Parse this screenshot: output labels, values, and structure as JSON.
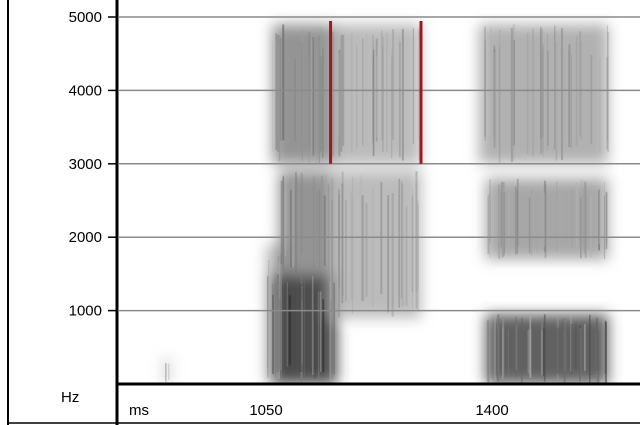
{
  "chart_data": {
    "type": "heatmap",
    "title": "",
    "x_unit_label": "ms",
    "y_unit_label": "Hz",
    "y_ticks": [
      1000,
      2000,
      3000,
      4000,
      5000
    ],
    "y_tick_labels": [
      "1000",
      "2000",
      "3000",
      "4000",
      "5000"
    ],
    "x_ticks": [
      1050,
      1400
    ],
    "x_tick_labels": [
      "1050",
      "1400"
    ],
    "ylim": [
      0,
      5000
    ],
    "xlim": [
      830,
      1630
    ],
    "grid": "horizontal",
    "energy_blobs": [
      {
        "x": [
          1050,
          1085
        ],
        "y": [
          0,
          1900
        ],
        "intensity": 0.35
      },
      {
        "x": [
          1060,
          1160
        ],
        "y": [
          0,
          1500
        ],
        "intensity": 0.9
      },
      {
        "x": [
          1070,
          1150
        ],
        "y": [
          1500,
          2900
        ],
        "intensity": 0.55
      },
      {
        "x": [
          1060,
          1160
        ],
        "y": [
          3000,
          4900
        ],
        "intensity": 0.55
      },
      {
        "x": [
          1150,
          1290
        ],
        "y": [
          900,
          2900
        ],
        "intensity": 0.35
      },
      {
        "x": [
          1150,
          1290
        ],
        "y": [
          3000,
          4900
        ],
        "intensity": 0.35
      },
      {
        "x": [
          1390,
          1580
        ],
        "y": [
          0,
          950
        ],
        "intensity": 0.8
      },
      {
        "x": [
          1390,
          1580
        ],
        "y": [
          1700,
          2800
        ],
        "intensity": 0.45
      },
      {
        "x": [
          1380,
          1580
        ],
        "y": [
          3000,
          4900
        ],
        "intensity": 0.4
      },
      {
        "x": [
          892,
          900
        ],
        "y": [
          0,
          350
        ],
        "intensity": 0.35
      }
    ],
    "markers": [
      {
        "x": 1150,
        "y": [
          3000,
          5000
        ],
        "color": "#a01818"
      },
      {
        "x": 1290,
        "y": [
          3000,
          5000
        ],
        "color": "#a01818"
      }
    ]
  }
}
